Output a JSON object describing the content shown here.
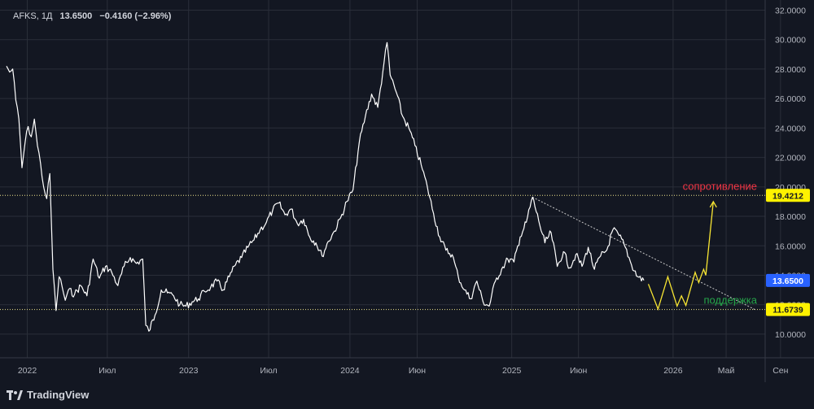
{
  "legend": {
    "symbol": "AFKS, 1Д",
    "value": "13.6500",
    "change": "−0.4160 (−2.96%)"
  },
  "branding": {
    "name": "TradingView",
    "icon": "tradingview-logo-icon"
  },
  "colors": {
    "background": "#131722",
    "price_line": "#ffffff",
    "axis_text": "#b2b5be",
    "grid": "#2a2e39",
    "level_line": "#f0e68c",
    "projection": "#f7e533",
    "trendline": "#c8c8c8",
    "resistance_text": "#f23645",
    "support_text": "#26a64a",
    "price_tag_bg": "#2962ff",
    "level_tag_bg": "#fff200"
  },
  "chart_data": {
    "type": "line",
    "title": "",
    "xlabel": "",
    "ylabel": "",
    "ylim": [
      9,
      32
    ],
    "xlim": [
      "2021-11-15",
      "2026-11-25"
    ],
    "grid": true,
    "y_axis_position": "right",
    "y_ticks": [
      "10.0000",
      "12.0000",
      "14.0000",
      "16.0000",
      "18.0000",
      "20.0000",
      "22.0000",
      "24.0000",
      "26.0000",
      "28.0000",
      "30.0000",
      "32.0000"
    ],
    "x_ticks": [
      {
        "label": "2022",
        "date": "2022-01-01"
      },
      {
        "label": "Июл",
        "date": "2022-07-01"
      },
      {
        "label": "2023",
        "date": "2023-01-01"
      },
      {
        "label": "Июл",
        "date": "2023-07-01"
      },
      {
        "label": "2024",
        "date": "2024-01-01"
      },
      {
        "label": "Июн",
        "date": "2024-06-01"
      },
      {
        "label": "2025",
        "date": "2025-01-01"
      },
      {
        "label": "Июн",
        "date": "2025-06-01"
      },
      {
        "label": "2026",
        "date": "2026-01-01"
      },
      {
        "label": "Май",
        "date": "2026-05-01"
      },
      {
        "label": "Сен",
        "date": "2026-09-01"
      }
    ],
    "series": [
      {
        "values": [
          [
            "2021-11-15",
            28.2
          ],
          [
            "2021-11-22",
            27.8
          ],
          [
            "2021-11-29",
            28.0
          ],
          [
            "2021-12-06",
            25.9
          ],
          [
            "2021-12-13",
            24.6
          ],
          [
            "2021-12-20",
            21.3
          ],
          [
            "2021-12-27",
            23.0
          ],
          [
            "2022-01-03",
            24.1
          ],
          [
            "2022-01-10",
            23.4
          ],
          [
            "2022-01-17",
            24.6
          ],
          [
            "2022-01-24",
            22.8
          ],
          [
            "2022-01-31",
            21.6
          ],
          [
            "2022-02-07",
            20.0
          ],
          [
            "2022-02-14",
            19.2
          ],
          [
            "2022-02-21",
            20.9
          ],
          [
            "2022-02-28",
            14.4
          ],
          [
            "2022-03-07",
            11.6
          ],
          [
            "2022-03-14",
            13.9
          ],
          [
            "2022-03-21",
            13.2
          ],
          [
            "2022-03-28",
            12.3
          ],
          [
            "2022-04-04",
            13.0
          ],
          [
            "2022-04-18",
            12.7
          ],
          [
            "2022-05-02",
            13.3
          ],
          [
            "2022-05-16",
            12.6
          ],
          [
            "2022-05-30",
            15.1
          ],
          [
            "2022-06-13",
            13.8
          ],
          [
            "2022-06-27",
            14.6
          ],
          [
            "2022-07-11",
            14.2
          ],
          [
            "2022-07-25",
            13.3
          ],
          [
            "2022-08-08",
            14.6
          ],
          [
            "2022-08-22",
            15.2
          ],
          [
            "2022-09-05",
            14.8
          ],
          [
            "2022-09-19",
            15.1
          ],
          [
            "2022-09-26",
            10.6
          ],
          [
            "2022-10-03",
            10.2
          ],
          [
            "2022-10-17",
            11.3
          ],
          [
            "2022-10-31",
            13.0
          ],
          [
            "2022-11-14",
            12.8
          ],
          [
            "2022-11-28",
            12.6
          ],
          [
            "2022-12-12",
            12.0
          ],
          [
            "2022-12-26",
            11.9
          ],
          [
            "2023-01-09",
            12.2
          ],
          [
            "2023-01-23",
            12.4
          ],
          [
            "2023-02-06",
            12.9
          ],
          [
            "2023-02-20",
            13.2
          ],
          [
            "2023-03-06",
            13.6
          ],
          [
            "2023-03-20",
            13.0
          ],
          [
            "2023-04-03",
            13.9
          ],
          [
            "2023-04-17",
            14.7
          ],
          [
            "2023-05-01",
            15.2
          ],
          [
            "2023-05-15",
            15.9
          ],
          [
            "2023-05-29",
            16.4
          ],
          [
            "2023-06-12",
            17.1
          ],
          [
            "2023-06-26",
            17.6
          ],
          [
            "2023-07-10",
            18.4
          ],
          [
            "2023-07-24",
            18.9
          ],
          [
            "2023-08-07",
            18.1
          ],
          [
            "2023-08-21",
            18.5
          ],
          [
            "2023-09-04",
            17.5
          ],
          [
            "2023-09-18",
            17.8
          ],
          [
            "2023-10-02",
            16.6
          ],
          [
            "2023-10-16",
            16.2
          ],
          [
            "2023-10-30",
            15.3
          ],
          [
            "2023-11-13",
            16.3
          ],
          [
            "2023-11-27",
            17.0
          ],
          [
            "2023-12-11",
            17.9
          ],
          [
            "2023-12-25",
            19.0
          ],
          [
            "2024-01-08",
            19.8
          ],
          [
            "2024-01-22",
            23.0
          ],
          [
            "2024-02-05",
            24.8
          ],
          [
            "2024-02-19",
            26.3
          ],
          [
            "2024-03-04",
            25.4
          ],
          [
            "2024-03-18",
            28.4
          ],
          [
            "2024-03-25",
            29.8
          ],
          [
            "2024-04-01",
            27.6
          ],
          [
            "2024-04-15",
            26.4
          ],
          [
            "2024-04-29",
            24.8
          ],
          [
            "2024-05-13",
            24.0
          ],
          [
            "2024-05-27",
            22.8
          ],
          [
            "2024-06-10",
            21.5
          ],
          [
            "2024-06-24",
            20.0
          ],
          [
            "2024-07-08",
            18.2
          ],
          [
            "2024-07-22",
            16.6
          ],
          [
            "2024-08-05",
            15.7
          ],
          [
            "2024-08-19",
            15.4
          ],
          [
            "2024-09-02",
            13.9
          ],
          [
            "2024-09-16",
            13.0
          ],
          [
            "2024-09-30",
            12.4
          ],
          [
            "2024-10-14",
            13.6
          ],
          [
            "2024-10-28",
            12.2
          ],
          [
            "2024-11-11",
            11.9
          ],
          [
            "2024-11-25",
            13.6
          ],
          [
            "2024-12-09",
            14.4
          ],
          [
            "2024-12-23",
            15.1
          ],
          [
            "2025-01-06",
            14.9
          ],
          [
            "2025-01-20",
            16.6
          ],
          [
            "2025-02-03",
            17.6
          ],
          [
            "2025-02-17",
            19.3
          ],
          [
            "2025-03-03",
            17.7
          ],
          [
            "2025-03-17",
            16.2
          ],
          [
            "2025-03-31",
            16.9
          ],
          [
            "2025-04-14",
            14.6
          ],
          [
            "2025-04-28",
            15.6
          ],
          [
            "2025-05-12",
            14.5
          ],
          [
            "2025-05-26",
            15.4
          ],
          [
            "2025-06-09",
            14.6
          ],
          [
            "2025-06-23",
            15.9
          ],
          [
            "2025-07-07",
            14.4
          ],
          [
            "2025-07-21",
            15.3
          ],
          [
            "2025-08-04",
            15.7
          ],
          [
            "2025-08-18",
            17.1
          ],
          [
            "2025-09-01",
            16.7
          ],
          [
            "2025-09-15",
            15.9
          ],
          [
            "2025-09-29",
            14.7
          ],
          [
            "2025-10-13",
            13.9
          ],
          [
            "2025-10-27",
            13.65
          ]
        ]
      }
    ],
    "levels": [
      {
        "name": "сопротивление",
        "value": 19.4212,
        "label": "19.4212",
        "style": "dotted"
      },
      {
        "name": "поддержка",
        "value": 11.6739,
        "label": "11.6739",
        "style": "dotted"
      }
    ],
    "trendline": {
      "from": [
        "2025-02-17",
        19.3
      ],
      "to": [
        "2026-07-05",
        11.67
      ],
      "style": "dotted"
    },
    "projection": {
      "values": [
        [
          "2025-11-06",
          13.4
        ],
        [
          "2025-11-28",
          11.7
        ],
        [
          "2025-12-20",
          13.9
        ],
        [
          "2026-01-10",
          11.9
        ],
        [
          "2026-01-20",
          12.6
        ],
        [
          "2026-01-30",
          11.95
        ],
        [
          "2026-02-20",
          14.2
        ],
        [
          "2026-02-28",
          13.5
        ],
        [
          "2026-03-11",
          14.4
        ],
        [
          "2026-03-16",
          14.0
        ],
        [
          "2026-04-02",
          19.0
        ]
      ],
      "arrow": "up"
    },
    "last_price": {
      "value": 13.65,
      "label": "13.6500"
    }
  }
}
